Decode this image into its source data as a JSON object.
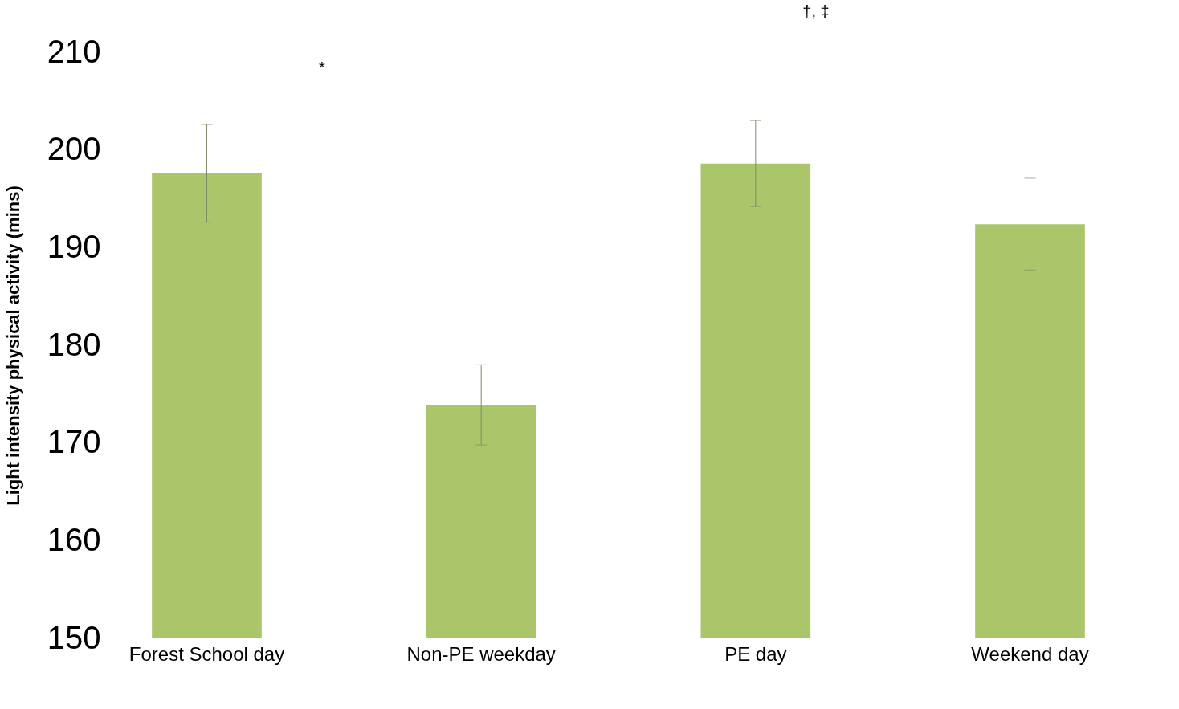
{
  "chart_data": {
    "type": "bar",
    "ylabel": "Light intensity physical activity (mins)",
    "categories": [
      "Forest School day",
      "Non-PE weekday",
      "PE day",
      "Weekend day"
    ],
    "values": [
      197.6,
      173.9,
      198.6,
      192.4
    ],
    "errors": [
      5.0,
      4.1,
      4.4,
      4.7
    ],
    "color": "#abc56b",
    "ylim": [
      150,
      210
    ],
    "yticks": [
      150,
      160,
      170,
      180,
      190,
      200,
      210
    ],
    "grid": false,
    "annotations": [
      "*",
      "†, ‡"
    ]
  }
}
